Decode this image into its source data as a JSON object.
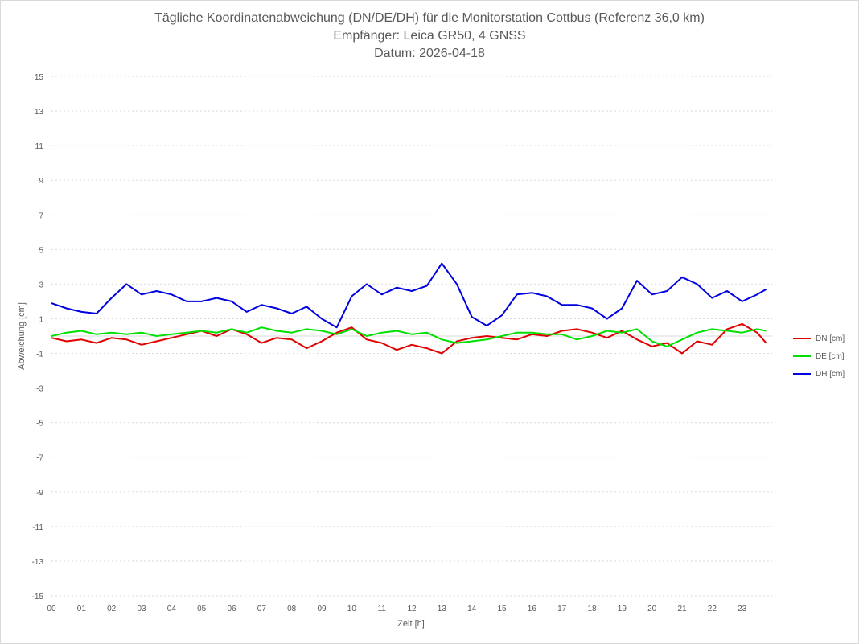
{
  "chart_data": {
    "type": "line",
    "title": [
      "Tägliche Koordinatenabweichung (DN/DE/DH) für die Monitorstation Cottbus (Referenz 36,0 km)",
      "Empfänger: Leica GR50, 4 GNSS",
      "Datum: 2026-04-18"
    ],
    "xlabel": "Zeit [h]",
    "ylabel": "Abweichung [cm]",
    "xlim": [
      0,
      24
    ],
    "ylim": [
      -15,
      15
    ],
    "x_ticks": [
      "00",
      "01",
      "02",
      "03",
      "04",
      "05",
      "06",
      "07",
      "08",
      "09",
      "10",
      "11",
      "12",
      "13",
      "14",
      "15",
      "16",
      "17",
      "18",
      "19",
      "20",
      "21",
      "22",
      "23"
    ],
    "y_ticks": [
      15,
      13,
      11,
      9,
      7,
      5,
      3,
      1,
      -1,
      -3,
      -5,
      -7,
      -9,
      -11,
      -13,
      -15
    ],
    "grid": "horizontal dotted",
    "legend_position": "right",
    "series": [
      {
        "name": "DN [cm]",
        "color": "#e00000",
        "x": [
          0,
          0.5,
          1,
          1.5,
          2,
          2.5,
          3,
          3.5,
          4,
          4.5,
          5,
          5.5,
          6,
          6.5,
          7,
          7.5,
          8,
          8.5,
          9,
          9.5,
          10,
          10.5,
          11,
          11.5,
          12,
          12.5,
          13,
          13.5,
          14,
          14.5,
          15,
          15.5,
          16,
          16.5,
          17,
          17.5,
          18,
          18.5,
          19,
          19.5,
          20,
          20.5,
          21,
          21.5,
          22,
          22.5,
          23,
          23.5,
          23.8
        ],
        "y": [
          -0.1,
          -0.3,
          -0.2,
          -0.4,
          -0.1,
          -0.2,
          -0.5,
          -0.3,
          -0.1,
          0.1,
          0.3,
          0.0,
          0.4,
          0.1,
          -0.4,
          -0.1,
          -0.2,
          -0.7,
          -0.3,
          0.2,
          0.5,
          -0.2,
          -0.4,
          -0.8,
          -0.5,
          -0.7,
          -1.0,
          -0.3,
          -0.1,
          0.0,
          -0.1,
          -0.2,
          0.1,
          0.0,
          0.3,
          0.4,
          0.2,
          -0.1,
          0.3,
          -0.2,
          -0.6,
          -0.4,
          -1.0,
          -0.3,
          -0.5,
          0.4,
          0.7,
          0.2,
          -0.4
        ]
      },
      {
        "name": "DE [cm]",
        "color": "#00e000",
        "x": [
          0,
          0.5,
          1,
          1.5,
          2,
          2.5,
          3,
          3.5,
          4,
          4.5,
          5,
          5.5,
          6,
          6.5,
          7,
          7.5,
          8,
          8.5,
          9,
          9.5,
          10,
          10.5,
          11,
          11.5,
          12,
          12.5,
          13,
          13.5,
          14,
          14.5,
          15,
          15.5,
          16,
          16.5,
          17,
          17.5,
          18,
          18.5,
          19,
          19.5,
          20,
          20.5,
          21,
          21.5,
          22,
          22.5,
          23,
          23.5,
          23.8
        ],
        "y": [
          0.0,
          0.2,
          0.3,
          0.1,
          0.2,
          0.1,
          0.2,
          0.0,
          0.1,
          0.2,
          0.3,
          0.2,
          0.4,
          0.2,
          0.5,
          0.3,
          0.2,
          0.4,
          0.3,
          0.1,
          0.4,
          0.0,
          0.2,
          0.3,
          0.1,
          0.2,
          -0.2,
          -0.4,
          -0.3,
          -0.2,
          0.0,
          0.2,
          0.2,
          0.1,
          0.1,
          -0.2,
          0.0,
          0.3,
          0.2,
          0.4,
          -0.3,
          -0.6,
          -0.2,
          0.2,
          0.4,
          0.3,
          0.2,
          0.4,
          0.3
        ]
      },
      {
        "name": "DH [cm]",
        "color": "#0000e0",
        "x": [
          0,
          0.5,
          1,
          1.5,
          2,
          2.5,
          3,
          3.5,
          4,
          4.5,
          5,
          5.5,
          6,
          6.5,
          7,
          7.5,
          8,
          8.5,
          9,
          9.5,
          10,
          10.5,
          11,
          11.5,
          12,
          12.5,
          13,
          13.5,
          14,
          14.5,
          15,
          15.5,
          16,
          16.5,
          17,
          17.5,
          18,
          18.5,
          19,
          19.5,
          20,
          20.5,
          21,
          21.5,
          22,
          22.5,
          23,
          23.5,
          23.8
        ],
        "y": [
          1.9,
          1.6,
          1.4,
          1.3,
          2.2,
          3.0,
          2.4,
          2.6,
          2.4,
          2.0,
          2.0,
          2.2,
          2.0,
          1.4,
          1.8,
          1.6,
          1.3,
          1.7,
          1.0,
          0.5,
          2.3,
          3.0,
          2.4,
          2.8,
          2.6,
          2.9,
          4.2,
          3.0,
          1.1,
          0.6,
          1.2,
          2.4,
          2.5,
          2.3,
          1.8,
          1.8,
          1.6,
          1.0,
          1.6,
          3.2,
          2.4,
          2.6,
          3.4,
          3.0,
          2.2,
          2.6,
          2.0,
          2.4,
          2.7
        ]
      }
    ]
  }
}
